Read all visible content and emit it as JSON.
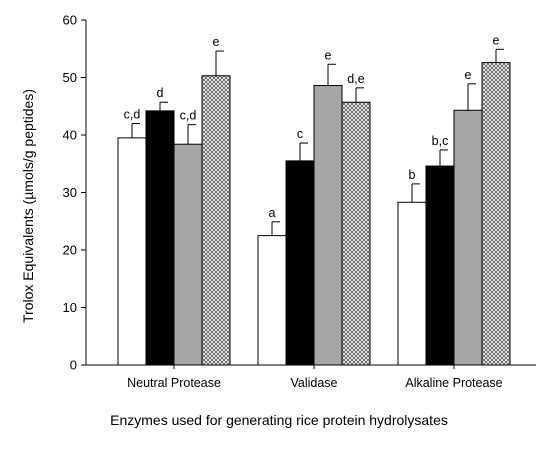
{
  "chart_data": {
    "type": "bar",
    "title": "",
    "xlabel": "Enzymes used for generating rice protein hydrolysates",
    "ylabel": "Trolox Equivalents (µmols/g peptides)",
    "ylim": [
      0,
      60
    ],
    "yticks": [
      "0",
      "10",
      "20",
      "30",
      "40",
      "50",
      "60"
    ],
    "grid": false,
    "legend": "none",
    "categories": [
      "Neutral Protease",
      "Validase",
      "Alkaline Protease"
    ],
    "series": [
      {
        "fill": "#ffffff",
        "pattern": "none",
        "values": [
          39.5,
          22.5,
          28.3
        ],
        "errors": [
          2.5,
          2.4,
          3.2
        ],
        "labels": [
          "c,d",
          "a",
          "b"
        ]
      },
      {
        "fill": "#000000",
        "pattern": "none",
        "values": [
          44.2,
          35.5,
          34.6
        ],
        "errors": [
          1.5,
          3.1,
          2.8
        ],
        "labels": [
          "d",
          "c",
          "b,c"
        ]
      },
      {
        "fill": "#a6a6a6",
        "pattern": "none",
        "values": [
          38.4,
          48.6,
          44.3
        ],
        "errors": [
          3.4,
          3.7,
          4.6
        ],
        "labels": [
          "c,d",
          "e",
          "e"
        ]
      },
      {
        "fill": "#ffffff",
        "pattern": "crosshatch",
        "values": [
          50.3,
          45.7,
          52.6
        ],
        "errors": [
          4.3,
          2.5,
          2.3
        ],
        "labels": [
          "e",
          "d,e",
          "e"
        ]
      }
    ]
  }
}
